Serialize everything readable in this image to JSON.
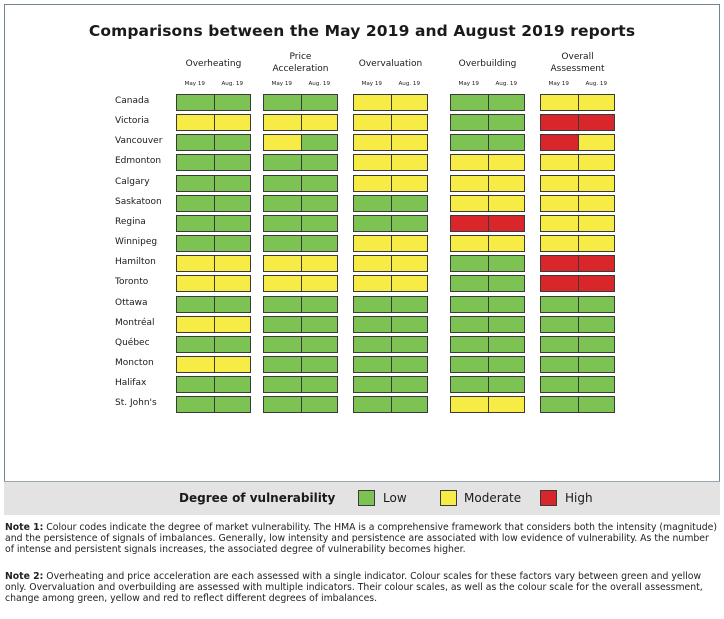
{
  "chart_data": {
    "type": "heatmap",
    "title": "Comparisons between the May 2019 and August 2019 reports",
    "groups": [
      "Overheating",
      "Price Acceleration",
      "Overvaluation",
      "Overbuilding",
      "Overall Assessment"
    ],
    "group_lines": [
      [
        "Overheating"
      ],
      [
        "Price",
        "Acceleration"
      ],
      [
        "Overvaluation"
      ],
      [
        "Overbuilding"
      ],
      [
        "Overall",
        "Assessment"
      ]
    ],
    "periods": [
      "May 19",
      "Aug. 19"
    ],
    "rows": [
      "Canada",
      "Victoria",
      "Vancouver",
      "Edmonton",
      "Calgary",
      "Saskatoon",
      "Regina",
      "Winnipeg",
      "Hamilton",
      "Toronto",
      "Ottawa",
      "Montréal",
      "Québec",
      "Moncton",
      "Halifax",
      "St. John's"
    ],
    "levels": {
      "L": {
        "label": "Low",
        "color": "#7dc353"
      },
      "M": {
        "label": "Moderate",
        "color": "#f7ec45"
      },
      "H": {
        "label": "High",
        "color": "#d9262a"
      }
    },
    "values": [
      [
        "L",
        "L",
        "L",
        "L",
        "M",
        "M",
        "L",
        "L",
        "M",
        "M"
      ],
      [
        "M",
        "M",
        "M",
        "M",
        "M",
        "M",
        "L",
        "L",
        "H",
        "H"
      ],
      [
        "L",
        "L",
        "M",
        "L",
        "M",
        "M",
        "L",
        "L",
        "H",
        "M"
      ],
      [
        "L",
        "L",
        "L",
        "L",
        "M",
        "M",
        "M",
        "M",
        "M",
        "M"
      ],
      [
        "L",
        "L",
        "L",
        "L",
        "M",
        "M",
        "M",
        "M",
        "M",
        "M"
      ],
      [
        "L",
        "L",
        "L",
        "L",
        "L",
        "L",
        "M",
        "M",
        "M",
        "M"
      ],
      [
        "L",
        "L",
        "L",
        "L",
        "L",
        "L",
        "H",
        "H",
        "M",
        "M"
      ],
      [
        "L",
        "L",
        "L",
        "L",
        "M",
        "M",
        "M",
        "M",
        "M",
        "M"
      ],
      [
        "M",
        "M",
        "M",
        "M",
        "M",
        "M",
        "L",
        "L",
        "H",
        "H"
      ],
      [
        "M",
        "M",
        "M",
        "M",
        "M",
        "M",
        "L",
        "L",
        "H",
        "H"
      ],
      [
        "L",
        "L",
        "L",
        "L",
        "L",
        "L",
        "L",
        "L",
        "L",
        "L"
      ],
      [
        "M",
        "M",
        "L",
        "L",
        "L",
        "L",
        "L",
        "L",
        "L",
        "L"
      ],
      [
        "L",
        "L",
        "L",
        "L",
        "L",
        "L",
        "L",
        "L",
        "L",
        "L"
      ],
      [
        "M",
        "M",
        "L",
        "L",
        "L",
        "L",
        "L",
        "L",
        "L",
        "L"
      ],
      [
        "L",
        "L",
        "L",
        "L",
        "L",
        "L",
        "L",
        "L",
        "L",
        "L"
      ],
      [
        "L",
        "L",
        "L",
        "L",
        "L",
        "L",
        "M",
        "M",
        "L",
        "L"
      ]
    ]
  },
  "legend": {
    "title": "Degree of vulnerability",
    "items": [
      {
        "key": "L",
        "label": "Low"
      },
      {
        "key": "M",
        "label": "Moderate"
      },
      {
        "key": "H",
        "label": "High"
      }
    ]
  },
  "notes": {
    "note1_label": "Note 1:",
    "note1_text": " Colour codes indicate the degree of market vulnerability. The HMA is a comprehensive framework that considers both the intensity (magnitude) and the persistence of signals of imbalances. Generally, low intensity and persistence are associated with low evidence of vulnerability. As the number of intense and persistent signals increases, the associated degree of vulnerability becomes higher.",
    "note2_label": "Note 2:",
    "note2_text": " Overheating and price acceleration are each assessed with a single indicator. Colour scales for these factors vary between green and yellow only. Overvaluation and overbuilding are assessed with multiple indicators. Their colour scales, as well as the colour scale for the overall assessment, change among green, yellow and red to reflect different degrees of imbalances."
  }
}
